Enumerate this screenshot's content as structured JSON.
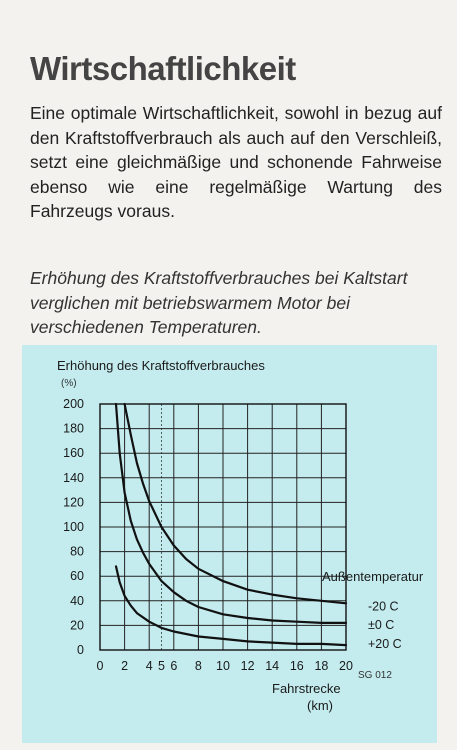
{
  "page": {
    "title": "Wirtschaftlichkeit",
    "paragraph": "Eine optimale Wirtschaftlichkeit, sowohl in bezug auf den Kraftstoffverbrauch als auch auf den Verschleiß, setzt eine gleichmäßige und schonende Fahrweise ebenso wie eine regelmäßige Wartung des Fahrzeugs voraus.",
    "caption": "Erhöhung des Kraftstoffverbrauches bei Kaltstart verglichen mit betriebswarmem Motor bei verschiedenen Temperaturen."
  },
  "chart_data": {
    "type": "line",
    "title": "Erhöhung des Kraftstoffverbrauches",
    "ylabel": "(%)",
    "xlabel_line1": "Fahrstrecke",
    "xlabel_line2": "(km)",
    "legend_title": "Außentemperatur",
    "figure_code": "SG 012",
    "xlim": [
      0,
      20
    ],
    "ylim": [
      0,
      200
    ],
    "x_ticks": [
      0,
      2,
      4,
      5,
      6,
      8,
      10,
      12,
      14,
      16,
      18,
      20
    ],
    "y_ticks": [
      0,
      20,
      40,
      60,
      80,
      100,
      120,
      140,
      160,
      180,
      200
    ],
    "grid": true,
    "series": [
      {
        "name": "-20 C",
        "x": [
          2,
          2.5,
          3,
          3.5,
          4,
          5,
          6,
          7,
          8,
          10,
          12,
          14,
          16,
          18,
          20
        ],
        "values": [
          200,
          175,
          152,
          135,
          121,
          100,
          85,
          74,
          66,
          56,
          49,
          45,
          42,
          40,
          38
        ]
      },
      {
        "name": "±0 C",
        "x": [
          1.3,
          1.6,
          2,
          2.5,
          3,
          3.5,
          4,
          5,
          6,
          7,
          8,
          10,
          12,
          14,
          16,
          18,
          20
        ],
        "values": [
          200,
          160,
          128,
          105,
          90,
          79,
          70,
          56,
          47,
          40,
          35,
          29,
          26,
          24,
          23,
          22,
          22
        ]
      },
      {
        "name": "+20 C",
        "x": [
          1.3,
          1.6,
          2,
          2.5,
          3,
          4,
          5,
          6,
          7,
          8,
          10,
          12,
          14,
          16,
          18,
          20
        ],
        "values": [
          68,
          55,
          44,
          36,
          30,
          23,
          18,
          15,
          13,
          11,
          9,
          7,
          6,
          5,
          5,
          4
        ]
      }
    ]
  }
}
